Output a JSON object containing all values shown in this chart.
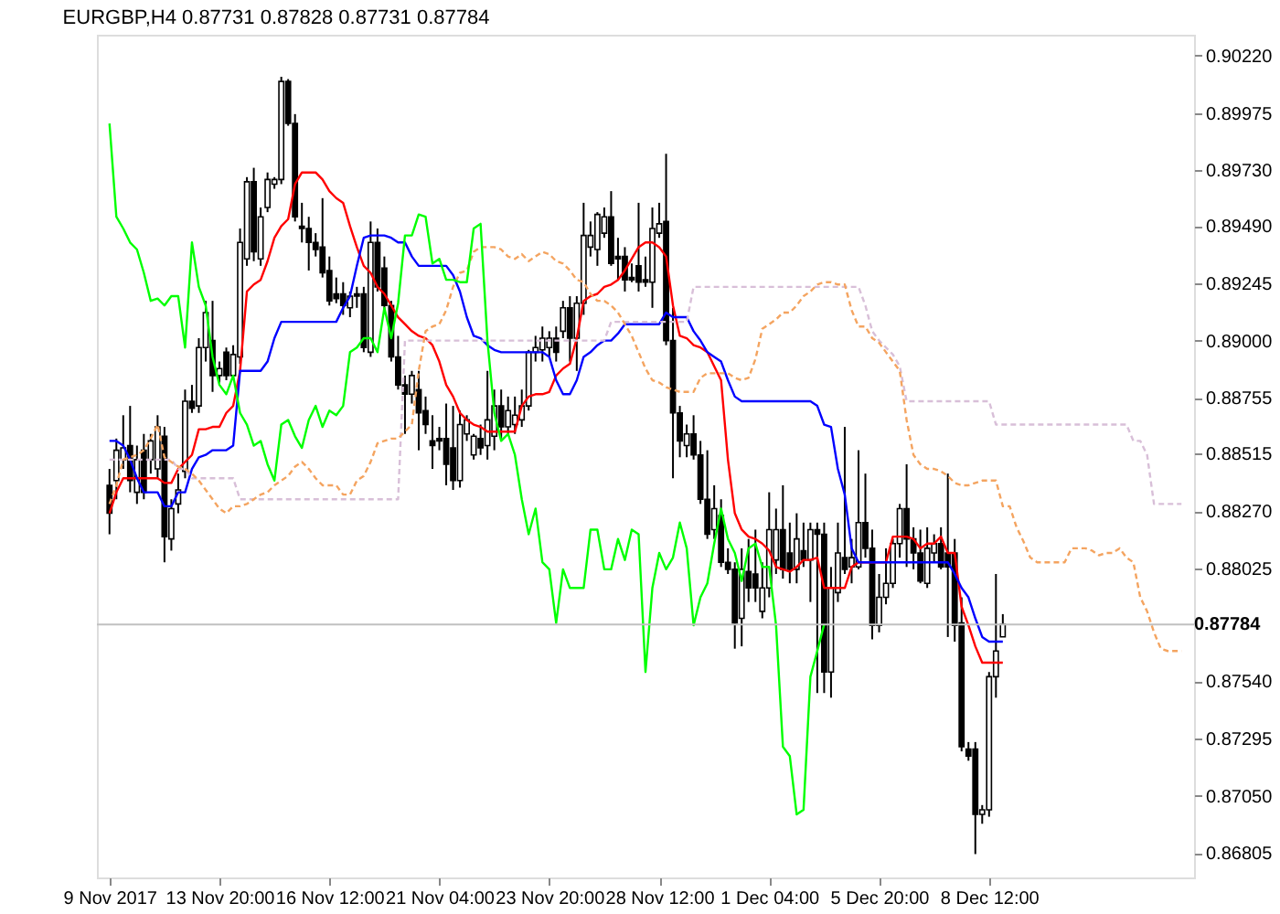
{
  "chart_data": {
    "type": "candlestick",
    "title": "EURGBP,H4 0.87731 0.87828 0.87731 0.87784",
    "categories": [
      "9 Nov 2017",
      null,
      null,
      null,
      null,
      null,
      null,
      null,
      null,
      null,
      null,
      null,
      null,
      null,
      null,
      null,
      "13 Nov 20:00",
      null,
      null,
      null,
      null,
      null,
      null,
      null,
      null,
      null,
      null,
      null,
      null,
      null,
      null,
      null,
      "16 Nov 12:00",
      null,
      null,
      null,
      null,
      null,
      null,
      null,
      null,
      null,
      null,
      null,
      null,
      null,
      null,
      null,
      "21 Nov 04:00",
      null,
      null,
      null,
      null,
      null,
      null,
      null,
      null,
      null,
      null,
      null,
      null,
      null,
      null,
      null,
      "23 Nov 20:00",
      null,
      null,
      null,
      null,
      null,
      null,
      null,
      null,
      null,
      null,
      null,
      null,
      null,
      null,
      null,
      "28 Nov 12:00",
      null,
      null,
      null,
      null,
      null,
      null,
      null,
      null,
      null,
      null,
      null,
      null,
      null,
      null,
      null,
      "1 Dec 04:00",
      null,
      null,
      null,
      null,
      null,
      null,
      null,
      null,
      null,
      null,
      null,
      null,
      null,
      null,
      null,
      "5 Dec 20:00",
      null,
      null,
      null,
      null,
      null,
      null,
      null,
      null,
      null,
      null,
      null,
      null,
      null,
      null,
      null,
      "8 Dec 12:00",
      null,
      null,
      null,
      null,
      null,
      null,
      null,
      null,
      null,
      null,
      null,
      null,
      null,
      null,
      null,
      null,
      null,
      null,
      null,
      null,
      null,
      null,
      null,
      null,
      null,
      null,
      null,
      null
    ],
    "ohlc": [
      [
        0.8838,
        0.8845,
        0.8817,
        0.8826
      ],
      [
        0.884,
        0.8858,
        0.8832,
        0.8853
      ],
      [
        0.8849,
        0.8868,
        0.8845,
        0.8854
      ],
      [
        0.8855,
        0.8872,
        0.8835,
        0.884
      ],
      [
        0.8835,
        0.8855,
        0.883,
        0.8849
      ],
      [
        0.8853,
        0.886,
        0.8832,
        0.8835
      ],
      [
        0.8849,
        0.886,
        0.8843,
        0.8857
      ],
      [
        0.8845,
        0.8868,
        0.8841,
        0.8863
      ],
      [
        0.8859,
        0.8863,
        0.8805,
        0.8816
      ],
      [
        0.8815,
        0.8832,
        0.881,
        0.8828
      ],
      [
        0.883,
        0.8843,
        0.8826,
        0.8836
      ],
      [
        0.8844,
        0.8879,
        0.8841,
        0.8874
      ],
      [
        0.8874,
        0.8881,
        0.8869,
        0.8871
      ],
      [
        0.8872,
        0.8901,
        0.8869,
        0.8897
      ],
      [
        0.8897,
        0.8917,
        0.8891,
        0.8912
      ],
      [
        0.89,
        0.8917,
        0.8878,
        0.8885
      ],
      [
        0.8885,
        0.8891,
        0.8882,
        0.8888
      ],
      [
        0.8895,
        0.8897,
        0.8883,
        0.8885
      ],
      [
        0.8885,
        0.8898,
        0.8883,
        0.8894
      ],
      [
        0.8893,
        0.8948,
        0.889,
        0.8942
      ],
      [
        0.8935,
        0.897,
        0.8932,
        0.8968
      ],
      [
        0.8968,
        0.8974,
        0.8934,
        0.8938
      ],
      [
        0.8935,
        0.8957,
        0.8932,
        0.8953
      ],
      [
        0.8957,
        0.8972,
        0.8955,
        0.8969
      ],
      [
        0.8967,
        0.897,
        0.8965,
        0.8969
      ],
      [
        0.8969,
        0.9013,
        0.8967,
        0.9011
      ],
      [
        0.9011,
        0.9012,
        0.8992,
        0.8993
      ],
      [
        0.8993,
        0.8997,
        0.8951,
        0.8953
      ],
      [
        0.8949,
        0.8959,
        0.8942,
        0.8948
      ],
      [
        0.8948,
        0.8953,
        0.893,
        0.8942
      ],
      [
        0.8942,
        0.8946,
        0.8936,
        0.8939
      ],
      [
        0.894,
        0.8961,
        0.8927,
        0.8929
      ],
      [
        0.893,
        0.8936,
        0.8915,
        0.8917
      ],
      [
        0.892,
        0.8927,
        0.8916,
        0.8918
      ],
      [
        0.892,
        0.8925,
        0.8911,
        0.8915
      ],
      [
        0.8914,
        0.8921,
        0.891,
        0.8919
      ],
      [
        0.892,
        0.8923,
        0.8914,
        0.8919
      ],
      [
        0.892,
        0.8923,
        0.8895,
        0.8897
      ],
      [
        0.8895,
        0.8951,
        0.8893,
        0.8942
      ],
      [
        0.8942,
        0.8948,
        0.8921,
        0.8923
      ],
      [
        0.8931,
        0.8936,
        0.8913,
        0.8915
      ],
      [
        0.8915,
        0.8917,
        0.8891,
        0.8893
      ],
      [
        0.8893,
        0.8902,
        0.8879,
        0.8881
      ],
      [
        0.8881,
        0.8885,
        0.886,
        0.8877
      ],
      [
        0.8877,
        0.8887,
        0.8873,
        0.8885
      ],
      [
        0.8879,
        0.8887,
        0.8853,
        0.8869
      ],
      [
        0.887,
        0.8876,
        0.886,
        0.8864
      ],
      [
        0.8857,
        0.8868,
        0.8845,
        0.8855
      ],
      [
        0.8858,
        0.8863,
        0.8853,
        0.8857
      ],
      [
        0.8858,
        0.8873,
        0.8838,
        0.8847
      ],
      [
        0.8854,
        0.8872,
        0.8836,
        0.884
      ],
      [
        0.884,
        0.887,
        0.8837,
        0.8864
      ],
      [
        0.886,
        0.8868,
        0.8857,
        0.8866
      ],
      [
        0.8851,
        0.886,
        0.8849,
        0.8859
      ],
      [
        0.8858,
        0.8864,
        0.8851,
        0.8854
      ],
      [
        0.8855,
        0.8887,
        0.8849,
        0.8866
      ],
      [
        0.8859,
        0.8879,
        0.8853,
        0.8872
      ],
      [
        0.8872,
        0.8879,
        0.8858,
        0.8863
      ],
      [
        0.8863,
        0.8876,
        0.886,
        0.887
      ],
      [
        0.8864,
        0.8876,
        0.886,
        0.8868
      ],
      [
        0.8866,
        0.8879,
        0.8863,
        0.8872
      ],
      [
        0.8872,
        0.8896,
        0.887,
        0.8895
      ],
      [
        0.8895,
        0.8902,
        0.8891,
        0.8897
      ],
      [
        0.8896,
        0.8906,
        0.8891,
        0.8901
      ],
      [
        0.8897,
        0.8904,
        0.8893,
        0.8901
      ],
      [
        0.8901,
        0.8906,
        0.8891,
        0.8895
      ],
      [
        0.8904,
        0.8917,
        0.8901,
        0.8914
      ],
      [
        0.8914,
        0.8919,
        0.8891,
        0.8901
      ],
      [
        0.8901,
        0.8919,
        0.8887,
        0.8916
      ],
      [
        0.8916,
        0.8959,
        0.8911,
        0.8945
      ],
      [
        0.894,
        0.8951,
        0.8936,
        0.8945
      ],
      [
        0.8939,
        0.8955,
        0.8932,
        0.8954
      ],
      [
        0.8946,
        0.8957,
        0.8944,
        0.8953
      ],
      [
        0.8953,
        0.8964,
        0.8932,
        0.8933
      ],
      [
        0.8936,
        0.8944,
        0.8926,
        0.8935
      ],
      [
        0.8936,
        0.894,
        0.8921,
        0.8926
      ],
      [
        0.8927,
        0.8933,
        0.8925,
        0.8926
      ],
      [
        0.8932,
        0.8959,
        0.8921,
        0.8925
      ],
      [
        0.8926,
        0.8936,
        0.8923,
        0.8925
      ],
      [
        0.8925,
        0.8957,
        0.8914,
        0.8948
      ],
      [
        0.8946,
        0.8959,
        0.8944,
        0.895
      ],
      [
        0.8951,
        0.898,
        0.8898,
        0.89
      ],
      [
        0.89,
        0.8914,
        0.8841,
        0.8869
      ],
      [
        0.8869,
        0.8872,
        0.885,
        0.8857
      ],
      [
        0.8855,
        0.8864,
        0.885,
        0.886
      ],
      [
        0.886,
        0.8868,
        0.8849,
        0.8851
      ],
      [
        0.8851,
        0.8857,
        0.883,
        0.8832
      ],
      [
        0.8832,
        0.8853,
        0.8815,
        0.8817
      ],
      [
        0.8819,
        0.8838,
        0.8815,
        0.8828
      ],
      [
        0.8825,
        0.8832,
        0.8803,
        0.8805
      ],
      [
        0.8805,
        0.8811,
        0.88,
        0.8802
      ],
      [
        0.8802,
        0.8805,
        0.8768,
        0.8779
      ],
      [
        0.8781,
        0.8811,
        0.8769,
        0.8802
      ],
      [
        0.8801,
        0.8815,
        0.8788,
        0.8794
      ],
      [
        0.88,
        0.8819,
        0.8788,
        0.8794
      ],
      [
        0.8784,
        0.8805,
        0.8781,
        0.8794
      ],
      [
        0.8794,
        0.8835,
        0.879,
        0.8819
      ],
      [
        0.8806,
        0.8828,
        0.88,
        0.8819
      ],
      [
        0.8819,
        0.8838,
        0.8798,
        0.8802
      ],
      [
        0.8809,
        0.8822,
        0.8796,
        0.8802
      ],
      [
        0.8802,
        0.8826,
        0.8796,
        0.8815
      ],
      [
        0.881,
        0.8822,
        0.8803,
        0.8806
      ],
      [
        0.8806,
        0.8822,
        0.8788,
        0.8819
      ],
      [
        0.8819,
        0.8822,
        0.8749,
        0.8817
      ],
      [
        0.8817,
        0.8822,
        0.8749,
        0.8758
      ],
      [
        0.8758,
        0.8803,
        0.8747,
        0.8794
      ],
      [
        0.8792,
        0.8822,
        0.8788,
        0.8809
      ],
      [
        0.8807,
        0.8863,
        0.88,
        0.8802
      ],
      [
        0.8803,
        0.8815,
        0.8796,
        0.8807
      ],
      [
        0.8803,
        0.8853,
        0.8802,
        0.8822
      ],
      [
        0.8822,
        0.8843,
        0.8807,
        0.8811
      ],
      [
        0.8811,
        0.8819,
        0.8772,
        0.8778
      ],
      [
        0.8778,
        0.88,
        0.8775,
        0.879
      ],
      [
        0.879,
        0.8811,
        0.8787,
        0.8796
      ],
      [
        0.8796,
        0.8815,
        0.8794,
        0.8813
      ],
      [
        0.8813,
        0.883,
        0.8807,
        0.8828
      ],
      [
        0.8828,
        0.8847,
        0.8803,
        0.8815
      ],
      [
        0.8815,
        0.882,
        0.8802,
        0.8809
      ],
      [
        0.8809,
        0.8819,
        0.8796,
        0.8797
      ],
      [
        0.8796,
        0.882,
        0.8794,
        0.8811
      ],
      [
        0.8809,
        0.8817,
        0.8805,
        0.8813
      ],
      [
        0.8813,
        0.882,
        0.8802,
        0.8803
      ],
      [
        0.8809,
        0.8843,
        0.8773,
        0.8803
      ],
      [
        0.8809,
        0.8815,
        0.8771,
        0.8778
      ],
      [
        0.8779,
        0.879,
        0.8724,
        0.8726
      ],
      [
        0.8725,
        0.8728,
        0.872,
        0.8722
      ],
      [
        0.8725,
        0.8728,
        0.868,
        0.8697
      ],
      [
        0.8697,
        0.8701,
        0.8693,
        0.8699
      ],
      [
        0.8699,
        0.8758,
        0.8696,
        0.8756
      ],
      [
        0.8756,
        0.88,
        0.8747,
        0.8767
      ],
      [
        0.87731,
        0.87828,
        0.87731,
        0.87784
      ],
      null,
      null,
      null,
      null,
      null,
      null,
      null,
      null,
      null,
      null,
      null,
      null,
      null,
      null,
      null,
      null,
      null,
      null,
      null,
      null,
      null,
      null,
      null,
      null,
      null,
      null
    ],
    "series": [
      {
        "type": "line",
        "color": "#00ff00",
        "values": [
          0.8993,
          0.8953,
          0.8948,
          0.8942,
          0.8939,
          0.8929,
          0.8917,
          0.8918,
          0.8915,
          0.8919,
          0.8919,
          0.8897,
          0.8942,
          0.8923,
          0.8915,
          0.8893,
          0.8881,
          0.8877,
          0.8885,
          0.8869,
          0.8864,
          0.8855,
          0.8857,
          0.8847,
          0.884,
          0.8864,
          0.8866,
          0.8859,
          0.8854,
          0.8866,
          0.8872,
          0.8863,
          0.887,
          0.8868,
          0.8872,
          0.8895,
          0.8897,
          0.8901,
          0.8901,
          0.8895,
          0.8914,
          0.8901,
          0.8916,
          0.8945,
          0.8945,
          0.8954,
          0.8953,
          0.8933,
          0.8935,
          0.8926,
          0.8926,
          0.8925,
          0.8925,
          0.8948,
          0.895,
          0.89,
          0.8869,
          0.8857,
          0.886,
          0.8851,
          0.8832,
          0.8817,
          0.8828,
          0.8805,
          0.8802,
          0.8779,
          0.8802,
          0.8794,
          0.8794,
          0.8794,
          0.8819,
          0.8819,
          0.8802,
          0.8802,
          0.8815,
          0.8806,
          0.8819,
          0.8817,
          0.8758,
          0.8794,
          0.8809,
          0.8802,
          0.8807,
          0.8822,
          0.8811,
          0.8778,
          0.879,
          0.8796,
          0.8813,
          0.8828,
          0.8815,
          0.8809,
          0.8797,
          0.8811,
          0.8813,
          0.8803,
          0.8803,
          0.8778,
          0.8726,
          0.8722,
          0.8697,
          0.8699,
          0.8756,
          0.8767,
          0.87784,
          null,
          null,
          null,
          null,
          null,
          null,
          null,
          null,
          null,
          null,
          null,
          null,
          null,
          null,
          null,
          null,
          null,
          null,
          null,
          null,
          null,
          null,
          null,
          null,
          null,
          null,
          null,
          null,
          null,
          null,
          null,
          null,
          null,
          null,
          null,
          null,
          null,
          null,
          null,
          null,
          null,
          null,
          null,
          null,
          null,
          null,
          null,
          null,
          null,
          null,
          null,
          null
        ]
      },
      {
        "type": "line",
        "color": "#f4a460",
        "line_style": "dashed",
        "values": [
          0.883,
          0.8838,
          0.8849,
          0.885,
          0.8851,
          0.8853,
          0.8858,
          0.8864,
          0.885,
          0.8848,
          0.8846,
          0.8845,
          0.8843,
          0.884,
          0.8836,
          0.8832,
          0.8828,
          0.8826,
          0.8829,
          0.8829,
          0.883,
          0.8832,
          0.8834,
          0.8835,
          0.8838,
          0.884,
          0.8842,
          0.8846,
          0.8848,
          0.8845,
          0.8841,
          0.8838,
          0.8838,
          0.8838,
          0.8834,
          0.8834,
          0.884,
          0.8842,
          0.8848,
          0.8856,
          0.8857,
          0.8858,
          0.8858,
          0.8861,
          0.8864,
          0.8887,
          0.8904,
          0.8906,
          0.8907,
          0.8913,
          0.8923,
          0.8929,
          0.893,
          0.8938,
          0.894,
          0.894,
          0.894,
          0.8939,
          0.8936,
          0.8935,
          0.8937,
          0.8934,
          0.8936,
          0.8938,
          0.8937,
          0.8934,
          0.8933,
          0.893,
          0.8926,
          0.8925,
          0.892,
          0.8917,
          0.8917,
          0.8915,
          0.8912,
          0.8907,
          0.8902,
          0.8895,
          0.8888,
          0.8883,
          0.8882,
          0.888,
          0.8879,
          0.8878,
          0.8878,
          0.8878,
          0.8884,
          0.8886,
          0.8886,
          0.8886,
          0.8886,
          0.8884,
          0.8883,
          0.8884,
          0.8892,
          0.8905,
          0.8907,
          0.8909,
          0.8912,
          0.8912,
          0.8915,
          0.8919,
          0.8921,
          0.8924,
          0.8925,
          0.8925,
          0.8924,
          0.8924,
          0.8913,
          0.8906,
          0.8906,
          0.8901,
          0.8899,
          0.8895,
          0.8891,
          0.8887,
          0.8866,
          0.8851,
          0.8847,
          0.8845,
          0.8845,
          0.8844,
          0.8842,
          0.8839,
          0.8838,
          0.8838,
          0.8839,
          0.884,
          0.884,
          0.884,
          0.8829,
          0.8829,
          0.882,
          0.8814,
          0.8807,
          0.8805,
          0.8805,
          0.8805,
          0.8805,
          0.8805,
          0.8811,
          0.8811,
          0.8811,
          0.881,
          0.8808,
          0.8809,
          0.8809,
          0.8811,
          0.8807,
          0.8805,
          0.879,
          0.8784,
          0.8775,
          0.8768,
          0.8767,
          0.8767,
          0.8767
        ]
      },
      {
        "type": "line",
        "color": "#d8bfd8",
        "line_style": "dashed",
        "values": [
          0.8849,
          0.8849,
          0.8849,
          0.8849,
          0.8849,
          0.8849,
          0.8849,
          0.8849,
          0.8849,
          0.8849,
          0.8845,
          0.8845,
          0.8841,
          0.8841,
          0.8841,
          0.8841,
          0.8841,
          0.8841,
          0.8841,
          0.8832,
          0.8832,
          0.8832,
          0.8832,
          0.8832,
          0.8832,
          0.8832,
          0.8832,
          0.8832,
          0.8832,
          0.8832,
          0.8832,
          0.8832,
          0.8832,
          0.8832,
          0.8832,
          0.8832,
          0.8832,
          0.8832,
          0.8832,
          0.8832,
          0.8832,
          0.8832,
          0.8832,
          0.89,
          0.89,
          0.89,
          0.89,
          0.89,
          0.89,
          0.89,
          0.89,
          0.89,
          0.89,
          0.89,
          0.89,
          0.89,
          0.89,
          0.89,
          0.89,
          0.89,
          0.89,
          0.89,
          0.89,
          0.89,
          0.89,
          0.89,
          0.89,
          0.89,
          0.89,
          0.89,
          0.89,
          0.89,
          0.89,
          0.8908,
          0.8908,
          0.8908,
          0.8908,
          0.8908,
          0.8908,
          0.8908,
          0.8908,
          0.8908,
          0.8908,
          0.8908,
          0.8908,
          0.8923,
          0.8923,
          0.8923,
          0.8923,
          0.8923,
          0.8923,
          0.8923,
          0.8923,
          0.8923,
          0.8923,
          0.8923,
          0.8923,
          0.8923,
          0.8923,
          0.8923,
          0.8923,
          0.8923,
          0.8923,
          0.8923,
          0.8923,
          0.8923,
          0.8923,
          0.8923,
          0.8923,
          0.8923,
          0.8915,
          0.8904,
          0.89,
          0.8897,
          0.8894,
          0.8889,
          0.8874,
          0.8874,
          0.8874,
          0.8874,
          0.8874,
          0.8874,
          0.8874,
          0.8874,
          0.8874,
          0.8874,
          0.8874,
          0.8874,
          0.8874,
          0.8864,
          0.8864,
          0.8864,
          0.8864,
          0.8864,
          0.8864,
          0.8864,
          0.8864,
          0.8864,
          0.8864,
          0.8864,
          0.8864,
          0.8864,
          0.8864,
          0.8864,
          0.8864,
          0.8864,
          0.8864,
          0.8864,
          0.8864,
          0.8857,
          0.8857,
          0.8851,
          0.883,
          0.883,
          0.883,
          0.883,
          0.883
        ]
      },
      {
        "type": "line",
        "color": "#0000ff",
        "values": [
          0.8857,
          0.8857,
          0.8855,
          0.8849,
          0.8841,
          0.8835,
          0.8835,
          0.8835,
          0.8829,
          0.8829,
          0.8835,
          0.8835,
          0.8845,
          0.885,
          0.8851,
          0.8853,
          0.8853,
          0.8853,
          0.8855,
          0.8887,
          0.8887,
          0.8887,
          0.8887,
          0.8891,
          0.8901,
          0.8908,
          0.8908,
          0.8908,
          0.8908,
          0.8908,
          0.8908,
          0.8908,
          0.8908,
          0.8908,
          0.8914,
          0.8919,
          0.8932,
          0.8944,
          0.8945,
          0.8945,
          0.8945,
          0.8944,
          0.8942,
          0.8942,
          0.8936,
          0.8932,
          0.8932,
          0.8932,
          0.8932,
          0.8932,
          0.8928,
          0.8921,
          0.891,
          0.8902,
          0.8901,
          0.8898,
          0.8896,
          0.8895,
          0.8895,
          0.8895,
          0.8895,
          0.8895,
          0.8895,
          0.8895,
          0.8893,
          0.8883,
          0.8877,
          0.8877,
          0.8883,
          0.8893,
          0.8895,
          0.8898,
          0.89,
          0.89,
          0.8903,
          0.8907,
          0.8907,
          0.8907,
          0.8907,
          0.8907,
          0.8907,
          0.8912,
          0.891,
          0.891,
          0.891,
          0.8904,
          0.89,
          0.8895,
          0.8893,
          0.8891,
          0.8883,
          0.8876,
          0.8874,
          0.8874,
          0.8874,
          0.8874,
          0.8874,
          0.8874,
          0.8874,
          0.8874,
          0.8874,
          0.8874,
          0.8874,
          0.8872,
          0.8864,
          0.8863,
          0.8845,
          0.8834,
          0.8811,
          0.8805,
          0.8805,
          0.8805,
          0.8805,
          0.8805,
          0.8805,
          0.8805,
          0.8805,
          0.8805,
          0.8805,
          0.8805,
          0.8805,
          0.8805,
          0.8805,
          0.88,
          0.8794,
          0.879,
          0.8781,
          0.8773,
          0.8771,
          0.8771,
          0.8771,
          null,
          null,
          null,
          null,
          null,
          null,
          null,
          null,
          null,
          null,
          null,
          null,
          null,
          null,
          null,
          null,
          null,
          null,
          null,
          null,
          null,
          null,
          null,
          null,
          null,
          null
        ]
      },
      {
        "type": "line",
        "color": "#ff0000",
        "values": [
          0.8826,
          0.8835,
          0.8841,
          0.8841,
          0.8841,
          0.8841,
          0.8841,
          0.8841,
          0.8839,
          0.8839,
          0.8845,
          0.8848,
          0.8851,
          0.8862,
          0.8862,
          0.8863,
          0.8863,
          0.8869,
          0.8872,
          0.8887,
          0.8921,
          0.8924,
          0.8926,
          0.8934,
          0.8944,
          0.8949,
          0.8952,
          0.8967,
          0.8972,
          0.8972,
          0.8972,
          0.8969,
          0.8964,
          0.8961,
          0.8959,
          0.8949,
          0.894,
          0.8932,
          0.8929,
          0.8923,
          0.892,
          0.8915,
          0.891,
          0.8907,
          0.8904,
          0.8902,
          0.8901,
          0.8898,
          0.8891,
          0.8881,
          0.8876,
          0.8869,
          0.8866,
          0.8864,
          0.8863,
          0.8861,
          0.8861,
          0.8861,
          0.8861,
          0.8861,
          0.8872,
          0.8876,
          0.8877,
          0.8877,
          0.8878,
          0.8885,
          0.8888,
          0.889,
          0.8901,
          0.8917,
          0.8919,
          0.892,
          0.8923,
          0.8924,
          0.8926,
          0.893,
          0.8935,
          0.894,
          0.8942,
          0.8942,
          0.894,
          0.8936,
          0.8915,
          0.8902,
          0.8901,
          0.8898,
          0.8897,
          0.8895,
          0.8889,
          0.8883,
          0.8849,
          0.8826,
          0.8819,
          0.8816,
          0.8815,
          0.8813,
          0.881,
          0.8803,
          0.8802,
          0.8801,
          0.8803,
          0.8806,
          0.8806,
          0.8807,
          0.8794,
          0.8794,
          0.8794,
          0.8794,
          0.8803,
          0.8805,
          0.8805,
          0.8805,
          0.8805,
          0.8805,
          0.8816,
          0.8816,
          0.8816,
          0.8815,
          0.8811,
          0.8813,
          0.8813,
          0.8816,
          0.8809,
          0.8809,
          0.8786,
          0.8778,
          0.8769,
          0.8762,
          0.8762,
          0.8762,
          0.8762,
          null,
          null,
          null,
          null,
          null,
          null,
          null,
          null,
          null,
          null,
          null,
          null,
          null,
          null,
          null,
          null,
          null,
          null,
          null,
          null,
          null,
          null,
          null,
          null,
          null,
          null
        ]
      }
    ],
    "ylim": [
      0.867,
      0.9031
    ],
    "yticks": [
      {
        "value": 0.9022,
        "label": "0.90220"
      },
      {
        "value": 0.89975,
        "label": "0.89975"
      },
      {
        "value": 0.8973,
        "label": "0.89730"
      },
      {
        "value": 0.8949,
        "label": "0.89490"
      },
      {
        "value": 0.89245,
        "label": "0.89245"
      },
      {
        "value": 0.89,
        "label": "0.89000"
      },
      {
        "value": 0.88755,
        "label": "0.88755"
      },
      {
        "value": 0.88515,
        "label": "0.88515"
      },
      {
        "value": 0.8827,
        "label": "0.88270"
      },
      {
        "value": 0.88025,
        "label": "0.88025"
      },
      {
        "value": 0.8754,
        "label": "0.87540"
      },
      {
        "value": 0.87295,
        "label": "0.87295"
      },
      {
        "value": 0.8705,
        "label": "0.87050"
      },
      {
        "value": 0.86805,
        "label": "0.86805"
      }
    ],
    "ref_lines": [
      {
        "axis": "y",
        "value": 0.87784,
        "label": "0.87784",
        "color": "#c0c0c0"
      }
    ]
  }
}
